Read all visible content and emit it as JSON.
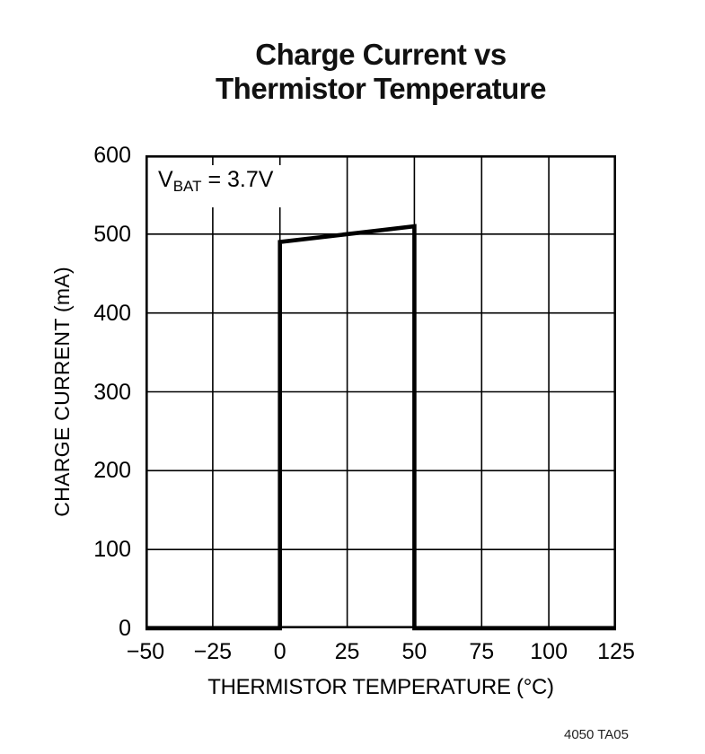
{
  "page": {
    "background": "#ffffff"
  },
  "chart": {
    "title_line1": "Charge Current vs",
    "title_line2": "Thermistor Temperature",
    "ylabel": "CHARGE CURRENT (mA)",
    "xlabel": "THERMISTOR TEMPERATURE (°C)",
    "annotation": {
      "pre": "V",
      "sub": "BAT",
      "post": " = 3.7V"
    },
    "figure_label": "4050 TA05",
    "line_color": "#000000",
    "grid_color": "#000000"
  },
  "chart_data": {
    "type": "line",
    "title": "Charge Current vs Thermistor Temperature",
    "xlabel": "THERMISTOR TEMPERATURE (°C)",
    "ylabel": "CHARGE CURRENT (mA)",
    "annotation": "VBAT = 3.7V",
    "figure_label": "4050 TA05",
    "xlim": [
      -50,
      125
    ],
    "ylim": [
      0,
      600
    ],
    "xticks": [
      -50,
      -25,
      0,
      25,
      50,
      75,
      100,
      125
    ],
    "xtick_labels": [
      "−50",
      "−25",
      "0",
      "25",
      "50",
      "75",
      "100",
      "125"
    ],
    "yticks": [
      0,
      100,
      200,
      300,
      400,
      500,
      600
    ],
    "ytick_labels": [
      "0",
      "100",
      "200",
      "300",
      "400",
      "500",
      "600"
    ],
    "grid": true,
    "legend": null,
    "series": [
      {
        "name": "Charge Current",
        "color": "#000000",
        "points": [
          [
            -50,
            0
          ],
          [
            0,
            0
          ],
          [
            0,
            490
          ],
          [
            50,
            510
          ],
          [
            50,
            0
          ],
          [
            125,
            0
          ]
        ]
      }
    ]
  }
}
